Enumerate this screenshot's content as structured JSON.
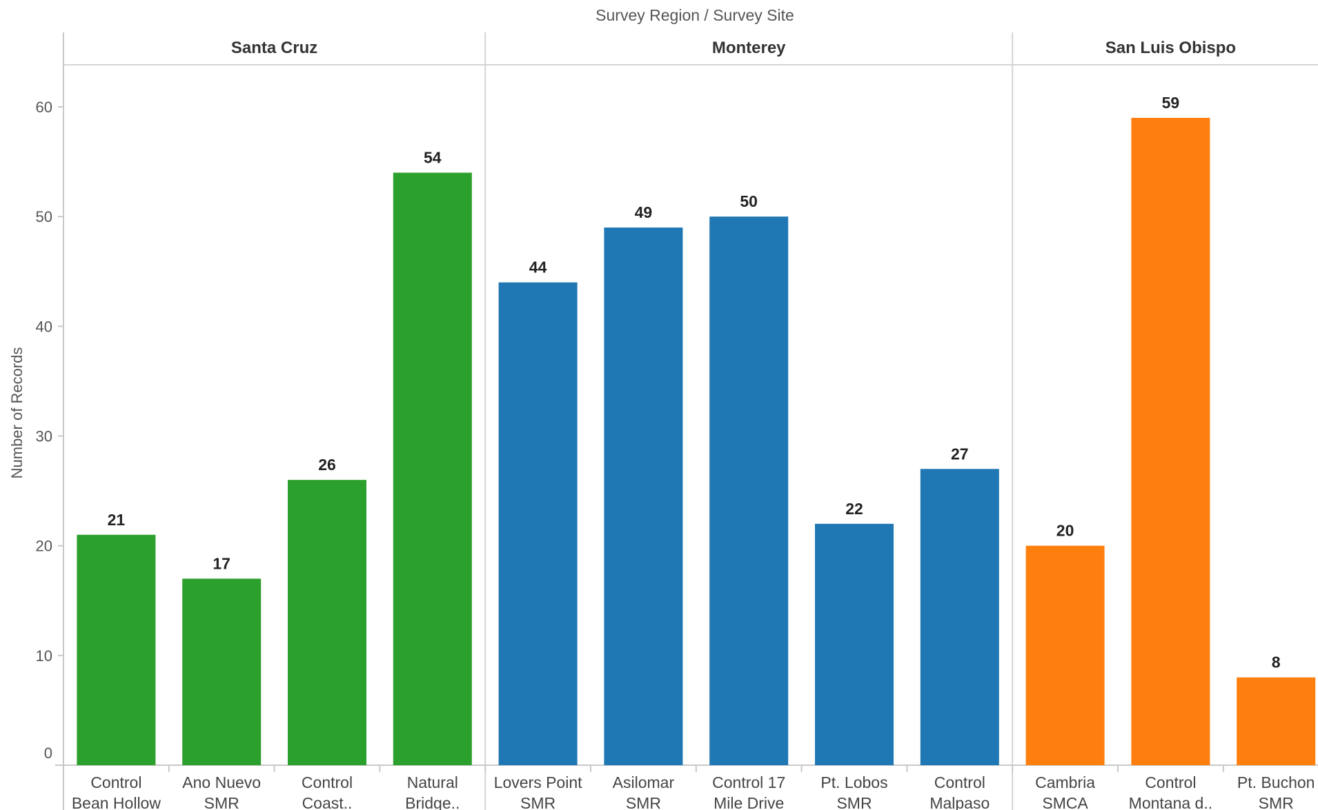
{
  "chart_data": {
    "type": "bar",
    "title": "Survey Region  /  Survey Site",
    "ylabel": "Number of Records",
    "ylim": [
      0,
      65
    ],
    "yticks": [
      0,
      10,
      20,
      30,
      40,
      50,
      60
    ],
    "grid": false,
    "groups": [
      {
        "name": "Santa Cruz",
        "color": "#2ca02c",
        "categories": [
          [
            "Control",
            "Bean Hollow"
          ],
          [
            "Ano Nuevo",
            "SMR"
          ],
          [
            "Control",
            "Coast.."
          ],
          [
            "Natural",
            "Bridge.."
          ]
        ],
        "values": [
          21,
          17,
          26,
          54
        ]
      },
      {
        "name": "Monterey",
        "color": "#1f77b4",
        "categories": [
          [
            "Lovers Point",
            "SMR"
          ],
          [
            "Asilomar",
            "SMR"
          ],
          [
            "Control 17",
            "Mile Drive"
          ],
          [
            "Pt. Lobos",
            "SMR"
          ],
          [
            "Control",
            "Malpaso"
          ]
        ],
        "values": [
          44,
          49,
          50,
          22,
          27
        ]
      },
      {
        "name": "San Luis Obispo",
        "color": "#ff7f0e",
        "categories": [
          [
            "Cambria",
            "SMCA"
          ],
          [
            "Control",
            "Montana d.."
          ],
          [
            "Pt. Buchon",
            "SMR"
          ]
        ],
        "values": [
          20,
          59,
          8
        ]
      }
    ]
  }
}
